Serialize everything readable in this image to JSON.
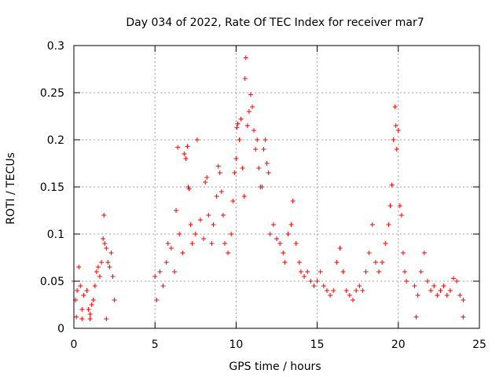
{
  "chart_data": {
    "type": "scatter",
    "title": "Day 034 of 2022, Rate Of TEC Index for receiver mar7",
    "xlabel": "GPS time / hours",
    "ylabel": "ROTI / TECUs",
    "xlim": [
      0,
      25
    ],
    "ylim": [
      0,
      0.3
    ],
    "xticks": [
      0,
      5,
      10,
      15,
      20,
      25
    ],
    "yticks": [
      0,
      0.05,
      0.1,
      0.15,
      0.2,
      0.25,
      0.3
    ],
    "xtick_labels": [
      "0",
      "5",
      "10",
      "15",
      "20",
      "25"
    ],
    "ytick_labels": [
      "0",
      "0.05",
      "0.1",
      "0.15",
      "0.2",
      "0.25",
      "0.3"
    ],
    "grid": true,
    "marker": "+",
    "color": "#ff0000",
    "series": [
      {
        "name": "ROTI",
        "points": [
          [
            0.0,
            0.05
          ],
          [
            0.1,
            0.03
          ],
          [
            0.2,
            0.04
          ],
          [
            0.3,
            0.065
          ],
          [
            0.4,
            0.045
          ],
          [
            0.5,
            0.02
          ],
          [
            0.6,
            0.035
          ],
          [
            0.8,
            0.04
          ],
          [
            0.9,
            0.02
          ],
          [
            1.0,
            0.015
          ],
          [
            1.1,
            0.025
          ],
          [
            1.2,
            0.03
          ],
          [
            1.3,
            0.045
          ],
          [
            1.4,
            0.06
          ],
          [
            1.5,
            0.065
          ],
          [
            1.6,
            0.055
          ],
          [
            1.7,
            0.07
          ],
          [
            1.8,
            0.095
          ],
          [
            1.85,
            0.12
          ],
          [
            1.9,
            0.09
          ],
          [
            2.0,
            0.085
          ],
          [
            2.1,
            0.07
          ],
          [
            2.2,
            0.065
          ],
          [
            2.3,
            0.08
          ],
          [
            2.4,
            0.055
          ],
          [
            2.5,
            0.03
          ],
          [
            0.15,
            0.012
          ],
          [
            0.5,
            0.01
          ],
          [
            1.0,
            0.01
          ],
          [
            2.0,
            0.01
          ],
          [
            5.0,
            0.055
          ],
          [
            5.1,
            0.03
          ],
          [
            5.3,
            0.06
          ],
          [
            5.5,
            0.045
          ],
          [
            5.7,
            0.07
          ],
          [
            5.8,
            0.09
          ],
          [
            6.0,
            0.085
          ],
          [
            6.2,
            0.06
          ],
          [
            6.3,
            0.125
          ],
          [
            6.4,
            0.192
          ],
          [
            6.5,
            0.1
          ],
          [
            6.7,
            0.08
          ],
          [
            6.8,
            0.185
          ],
          [
            6.9,
            0.18
          ],
          [
            7.0,
            0.193
          ],
          [
            7.05,
            0.15
          ],
          [
            7.1,
            0.148
          ],
          [
            7.2,
            0.11
          ],
          [
            7.3,
            0.09
          ],
          [
            7.5,
            0.1
          ],
          [
            7.6,
            0.2
          ],
          [
            7.8,
            0.115
          ],
          [
            8.0,
            0.095
          ],
          [
            8.1,
            0.155
          ],
          [
            8.2,
            0.16
          ],
          [
            8.3,
            0.12
          ],
          [
            8.5,
            0.09
          ],
          [
            8.6,
            0.11
          ],
          [
            8.8,
            0.14
          ],
          [
            8.9,
            0.172
          ],
          [
            9.0,
            0.165
          ],
          [
            9.1,
            0.145
          ],
          [
            9.2,
            0.12
          ],
          [
            9.3,
            0.09
          ],
          [
            9.5,
            0.08
          ],
          [
            9.7,
            0.1
          ],
          [
            9.8,
            0.135
          ],
          [
            9.9,
            0.165
          ],
          [
            10.0,
            0.18
          ],
          [
            10.05,
            0.213
          ],
          [
            10.1,
            0.217
          ],
          [
            10.2,
            0.2
          ],
          [
            10.3,
            0.222
          ],
          [
            10.4,
            0.17
          ],
          [
            10.5,
            0.14
          ],
          [
            10.55,
            0.265
          ],
          [
            10.6,
            0.287
          ],
          [
            10.7,
            0.215
          ],
          [
            10.8,
            0.23
          ],
          [
            10.9,
            0.248
          ],
          [
            11.0,
            0.235
          ],
          [
            11.1,
            0.21
          ],
          [
            11.2,
            0.19
          ],
          [
            11.3,
            0.2
          ],
          [
            11.4,
            0.17
          ],
          [
            11.5,
            0.15
          ],
          [
            11.6,
            0.15
          ],
          [
            11.7,
            0.19
          ],
          [
            11.8,
            0.2
          ],
          [
            11.9,
            0.175
          ],
          [
            12.0,
            0.165
          ],
          [
            12.1,
            0.1
          ],
          [
            12.3,
            0.11
          ],
          [
            12.5,
            0.095
          ],
          [
            12.7,
            0.09
          ],
          [
            12.9,
            0.08
          ],
          [
            13.0,
            0.07
          ],
          [
            13.2,
            0.1
          ],
          [
            13.4,
            0.11
          ],
          [
            13.5,
            0.135
          ],
          [
            13.7,
            0.09
          ],
          [
            13.9,
            0.07
          ],
          [
            14.0,
            0.06
          ],
          [
            14.2,
            0.055
          ],
          [
            14.4,
            0.06
          ],
          [
            14.6,
            0.05
          ],
          [
            14.8,
            0.045
          ],
          [
            15.0,
            0.05
          ],
          [
            15.2,
            0.06
          ],
          [
            15.4,
            0.045
          ],
          [
            15.6,
            0.04
          ],
          [
            15.8,
            0.035
          ],
          [
            16.0,
            0.04
          ],
          [
            16.2,
            0.07
          ],
          [
            16.4,
            0.085
          ],
          [
            16.6,
            0.06
          ],
          [
            16.8,
            0.04
          ],
          [
            17.0,
            0.035
          ],
          [
            17.2,
            0.03
          ],
          [
            17.4,
            0.04
          ],
          [
            17.6,
            0.045
          ],
          [
            17.8,
            0.04
          ],
          [
            18.0,
            0.06
          ],
          [
            18.2,
            0.08
          ],
          [
            18.4,
            0.11
          ],
          [
            18.6,
            0.07
          ],
          [
            18.8,
            0.06
          ],
          [
            19.0,
            0.07
          ],
          [
            19.2,
            0.09
          ],
          [
            19.4,
            0.11
          ],
          [
            19.5,
            0.13
          ],
          [
            19.6,
            0.152
          ],
          [
            19.7,
            0.2
          ],
          [
            19.8,
            0.235
          ],
          [
            19.85,
            0.215
          ],
          [
            19.9,
            0.19
          ],
          [
            20.0,
            0.21
          ],
          [
            20.1,
            0.13
          ],
          [
            20.2,
            0.12
          ],
          [
            20.3,
            0.08
          ],
          [
            20.4,
            0.06
          ],
          [
            20.5,
            0.05
          ],
          [
            21.0,
            0.045
          ],
          [
            21.2,
            0.035
          ],
          [
            21.4,
            0.06
          ],
          [
            21.6,
            0.08
          ],
          [
            21.8,
            0.05
          ],
          [
            22.0,
            0.04
          ],
          [
            22.2,
            0.045
          ],
          [
            22.4,
            0.035
          ],
          [
            22.6,
            0.04
          ],
          [
            22.8,
            0.045
          ],
          [
            23.0,
            0.035
          ],
          [
            23.2,
            0.04
          ],
          [
            23.4,
            0.053
          ],
          [
            23.6,
            0.05
          ],
          [
            23.8,
            0.035
          ],
          [
            24.0,
            0.03
          ],
          [
            21.1,
            0.012
          ],
          [
            24.0,
            0.012
          ]
        ]
      }
    ]
  }
}
